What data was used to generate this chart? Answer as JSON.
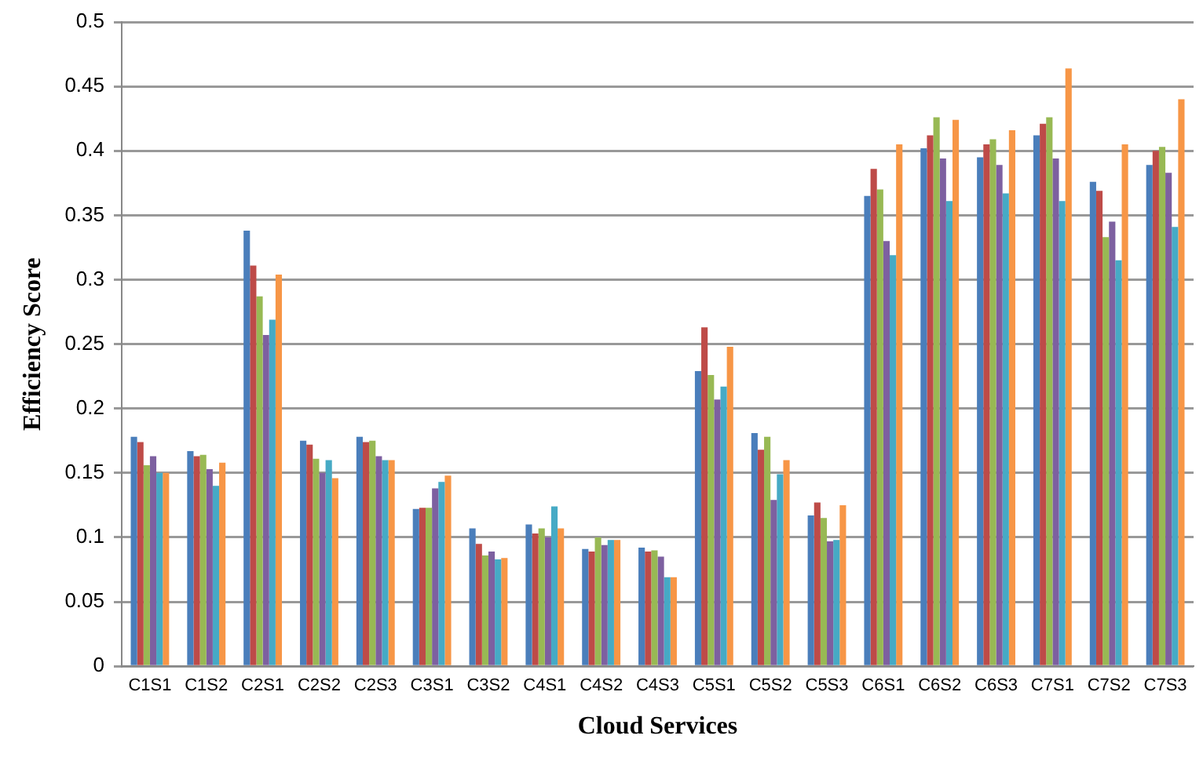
{
  "chart_data": {
    "type": "bar",
    "xlabel": "Cloud Services",
    "ylabel": "Efficiency Score",
    "categories": [
      "C1S1",
      "C1S2",
      "C2S1",
      "C2S2",
      "C2S3",
      "C3S1",
      "C3S2",
      "C4S1",
      "C4S2",
      "C4S3",
      "C5S1",
      "C5S2",
      "C5S3",
      "C6S1",
      "C6S2",
      "C6S3",
      "C7S1",
      "C7S2",
      "C7S3"
    ],
    "series": [
      {
        "color": "#4a7ebb",
        "values": [
          0.178,
          0.167,
          0.338,
          0.175,
          0.178,
          0.122,
          0.107,
          0.11,
          0.091,
          0.092,
          0.229,
          0.181,
          0.117,
          0.365,
          0.402,
          0.395,
          0.412,
          0.376,
          0.389
        ]
      },
      {
        "color": "#be4b48",
        "values": [
          0.174,
          0.163,
          0.311,
          0.172,
          0.174,
          0.123,
          0.095,
          0.103,
          0.089,
          0.089,
          0.263,
          0.168,
          0.127,
          0.386,
          0.412,
          0.405,
          0.421,
          0.369,
          0.4
        ]
      },
      {
        "color": "#98b954",
        "values": [
          0.156,
          0.164,
          0.287,
          0.161,
          0.175,
          0.123,
          0.086,
          0.107,
          0.1,
          0.09,
          0.226,
          0.178,
          0.115,
          0.37,
          0.426,
          0.409,
          0.426,
          0.333,
          0.403
        ]
      },
      {
        "color": "#7d60a0",
        "values": [
          0.163,
          0.153,
          0.257,
          0.15,
          0.163,
          0.138,
          0.089,
          0.1,
          0.094,
          0.085,
          0.207,
          0.129,
          0.097,
          0.33,
          0.394,
          0.389,
          0.394,
          0.345,
          0.383
        ]
      },
      {
        "color": "#46aac5",
        "values": [
          0.15,
          0.14,
          0.269,
          0.16,
          0.16,
          0.143,
          0.083,
          0.124,
          0.098,
          0.069,
          0.217,
          0.149,
          0.098,
          0.319,
          0.361,
          0.367,
          0.361,
          0.315,
          0.341
        ]
      },
      {
        "color": "#f79646",
        "values": [
          0.15,
          0.158,
          0.304,
          0.146,
          0.16,
          0.148,
          0.084,
          0.107,
          0.098,
          0.069,
          0.248,
          0.16,
          0.125,
          0.405,
          0.424,
          0.416,
          0.464,
          0.405,
          0.44
        ]
      }
    ],
    "ylim": [
      0,
      0.5
    ],
    "yticks": [
      0,
      0.05,
      0.1,
      0.15,
      0.2,
      0.25,
      0.3,
      0.35,
      0.4,
      0.45,
      0.5
    ],
    "grid": "y",
    "legend": false
  }
}
